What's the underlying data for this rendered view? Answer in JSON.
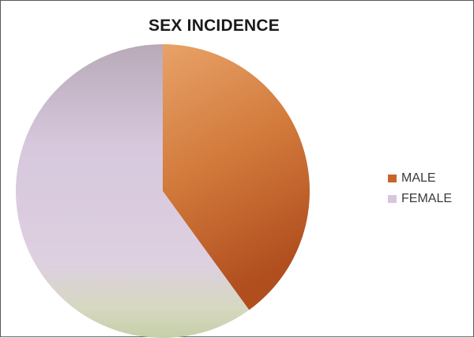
{
  "chart_data": {
    "type": "pie",
    "title": "SEX INCIDENCE",
    "categories": [
      "MALE",
      "FEMALE"
    ],
    "values": [
      40,
      60
    ],
    "start_angle_deg": 0,
    "direction": "clockwise",
    "colors": [
      "#c8642a",
      "#d8c6df"
    ],
    "legend_position": "right",
    "series": [
      {
        "name": "MALE",
        "value": 40,
        "color": "#c8642a"
      },
      {
        "name": "FEMALE",
        "value": 60,
        "color": "#d8c6df"
      }
    ]
  }
}
